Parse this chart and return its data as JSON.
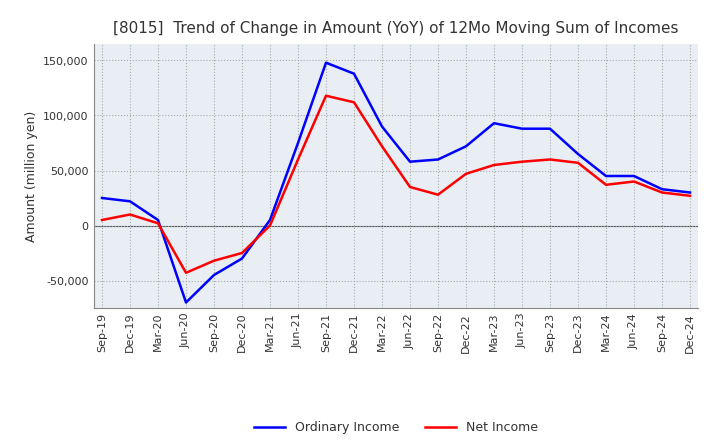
{
  "title": "[8015]  Trend of Change in Amount (YoY) of 12Mo Moving Sum of Incomes",
  "ylabel": "Amount (million yen)",
  "ylim": [
    -75000,
    165000
  ],
  "yticks": [
    -50000,
    0,
    50000,
    100000,
    150000
  ],
  "x_labels": [
    "Sep-19",
    "Dec-19",
    "Mar-20",
    "Jun-20",
    "Sep-20",
    "Dec-20",
    "Mar-21",
    "Jun-21",
    "Sep-21",
    "Dec-21",
    "Mar-22",
    "Jun-22",
    "Sep-22",
    "Dec-22",
    "Mar-23",
    "Jun-23",
    "Sep-23",
    "Dec-23",
    "Mar-24",
    "Jun-24",
    "Sep-24",
    "Dec-24"
  ],
  "ordinary_income": [
    25000,
    22000,
    5000,
    -70000,
    -45000,
    -30000,
    5000,
    75000,
    148000,
    138000,
    90000,
    58000,
    60000,
    72000,
    93000,
    88000,
    88000,
    65000,
    45000,
    45000,
    33000,
    30000
  ],
  "net_income": [
    5000,
    10000,
    2000,
    -43000,
    -32000,
    -25000,
    0,
    60000,
    118000,
    112000,
    72000,
    35000,
    28000,
    47000,
    55000,
    58000,
    60000,
    57000,
    37000,
    40000,
    30000,
    27000
  ],
  "ordinary_color": "#0000FF",
  "net_color": "#FF0000",
  "grid_color": "#AAAAAA",
  "plot_bg_color": "#E8EEF4",
  "background_color": "#FFFFFF",
  "title_fontsize": 11,
  "label_fontsize": 9,
  "tick_fontsize": 8,
  "title_color": "#333333"
}
